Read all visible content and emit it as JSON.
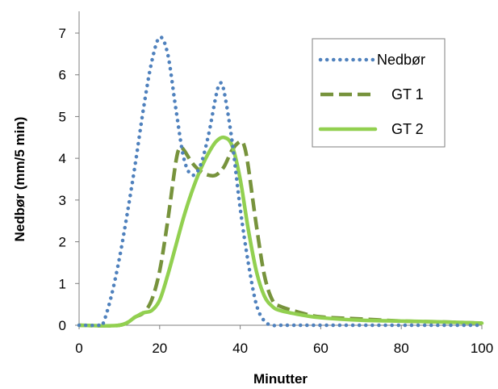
{
  "chart_data": {
    "type": "line",
    "title": "",
    "xlabel": "Minutter",
    "ylabel": "Nedbør (mm/5 min)",
    "xlim": [
      0,
      100
    ],
    "ylim": [
      0,
      7
    ],
    "xticks": [
      0,
      20,
      40,
      60,
      80,
      100
    ],
    "yticks": [
      0,
      1,
      2,
      3,
      4,
      5,
      6,
      7
    ],
    "grid": false,
    "legend_position": "top-right",
    "series": [
      {
        "name": "Nedbør",
        "style": "dotted",
        "color": "#4F81BD",
        "x": [
          0,
          5,
          6,
          8,
          10,
          12,
          14,
          16,
          18,
          20,
          22,
          24,
          26,
          28,
          30,
          32,
          34,
          35,
          36,
          38,
          40,
          42,
          44,
          46,
          48,
          50,
          55,
          60,
          70,
          80,
          90,
          100
        ],
        "y": [
          0,
          0,
          0.05,
          0.7,
          1.6,
          2.7,
          3.9,
          5.2,
          6.3,
          6.9,
          6.5,
          5.2,
          4.0,
          3.6,
          3.8,
          4.5,
          5.5,
          5.8,
          5.6,
          4.4,
          2.8,
          1.5,
          0.5,
          0.1,
          0,
          0,
          0,
          0,
          0,
          0,
          0,
          0
        ]
      },
      {
        "name": "GT 1",
        "style": "dashed",
        "color": "#77933C",
        "x": [
          0,
          10,
          14,
          16,
          18,
          20,
          22,
          24,
          25,
          26,
          28,
          30,
          32,
          34,
          36,
          38,
          40,
          41,
          42,
          44,
          46,
          48,
          50,
          55,
          60,
          70,
          80,
          90,
          100
        ],
        "y": [
          0,
          0,
          0.2,
          0.3,
          0.6,
          1.3,
          2.5,
          3.9,
          4.25,
          4.2,
          3.9,
          3.7,
          3.6,
          3.6,
          3.8,
          4.2,
          4.4,
          4.3,
          3.8,
          2.4,
          1.2,
          0.6,
          0.45,
          0.3,
          0.2,
          0.15,
          0.1,
          0.08,
          0.05
        ]
      },
      {
        "name": "GT 2",
        "style": "solid",
        "color": "#92D050",
        "x": [
          0,
          10,
          14,
          16,
          18,
          20,
          22,
          24,
          26,
          28,
          30,
          32,
          34,
          36,
          38,
          40,
          42,
          44,
          46,
          48,
          50,
          55,
          60,
          70,
          80,
          90,
          100
        ],
        "y": [
          0,
          0,
          0.2,
          0.3,
          0.35,
          0.6,
          1.2,
          1.9,
          2.6,
          3.2,
          3.7,
          4.1,
          4.4,
          4.5,
          4.3,
          3.5,
          2.3,
          1.3,
          0.7,
          0.45,
          0.35,
          0.25,
          0.18,
          0.12,
          0.1,
          0.08,
          0.05
        ]
      }
    ]
  }
}
